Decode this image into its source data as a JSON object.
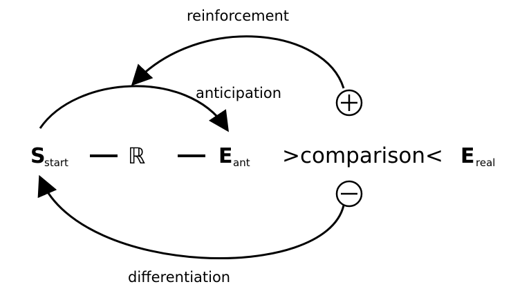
{
  "labels": {
    "reinforcement": "reinforcement",
    "anticipation": "anticipation",
    "differentiation": "differentiation"
  },
  "chain": {
    "s_letter": "S",
    "s_sub": "start",
    "r_symbol": "ℝ",
    "e_ant_letter": "E",
    "e_ant_sub": "ant",
    "comparison": ">comparison<",
    "e_real_letter": "E",
    "e_real_sub": "real"
  },
  "signs": {
    "plus": "+",
    "minus": "−"
  }
}
